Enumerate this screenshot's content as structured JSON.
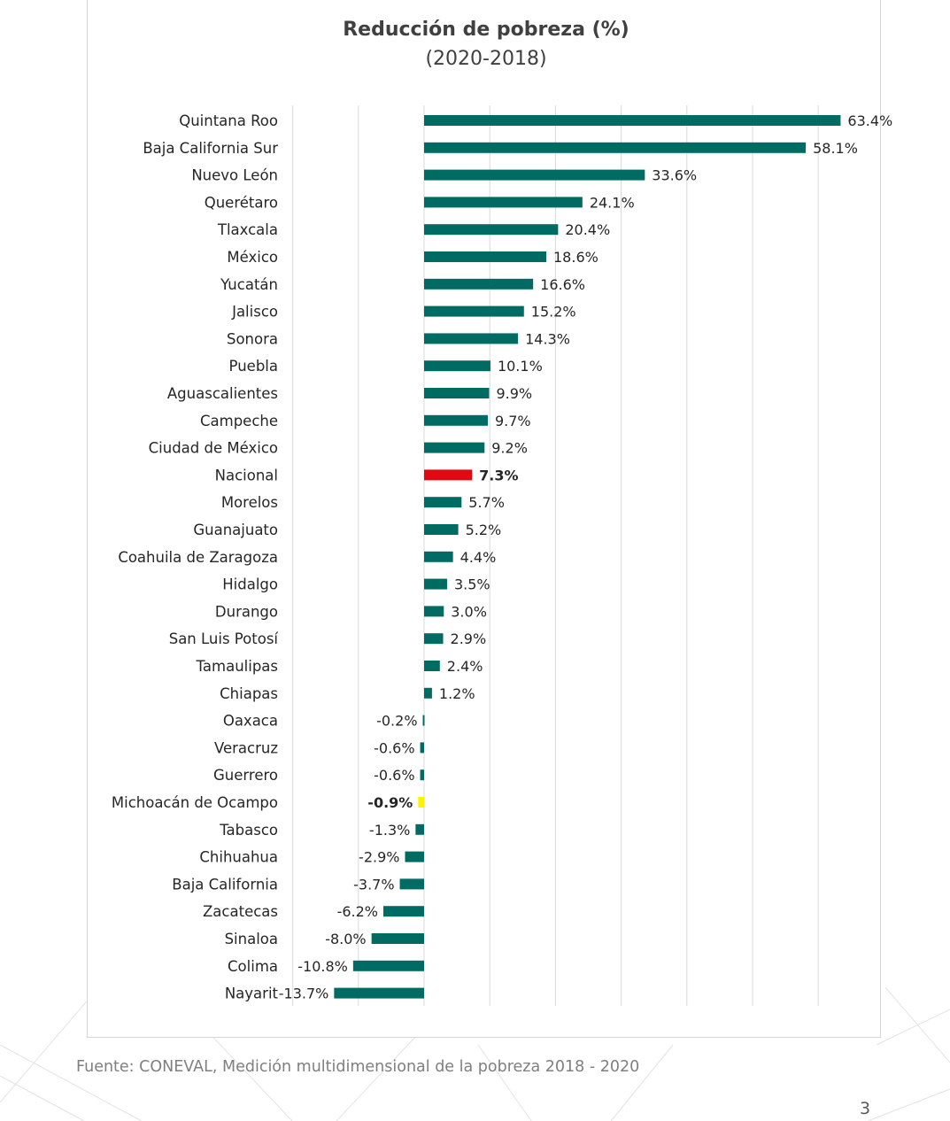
{
  "source_note": "Fuente: CONEVAL, Medición multidimensional de la pobreza 2018 - 2020",
  "page_number": "3",
  "chart_data": {
    "type": "bar",
    "orientation": "horizontal",
    "title": "Reducción de pobreza (%)",
    "subtitle": "(2020-2018)",
    "xlim": [
      -20,
      60
    ],
    "grid": true,
    "legend": "none",
    "colors": {
      "default": "#006B63",
      "nacional": "#E30613",
      "michoacan": "#FFF200",
      "michoacan_label": "#4C8C2B",
      "nacional_label": "#E30613",
      "label": "#262626"
    },
    "categories": [
      "Quintana Roo",
      "Baja California Sur",
      "Nuevo León",
      "Querétaro",
      "Tlaxcala",
      "México",
      "Yucatán",
      "Jalisco",
      "Sonora",
      "Puebla",
      "Aguascalientes",
      "Campeche",
      "Ciudad de México",
      "Nacional",
      "Morelos",
      "Guanajuato",
      "Coahuila de Zaragoza",
      "Hidalgo",
      "Durango",
      "San Luis Potosí",
      "Tamaulipas",
      "Chiapas",
      "Oaxaca",
      "Veracruz",
      "Guerrero",
      "Michoacán de Ocampo",
      "Tabasco",
      "Chihuahua",
      "Baja California",
      "Zacatecas",
      "Sinaloa",
      "Colima",
      "Nayarit"
    ],
    "values": [
      63.4,
      58.1,
      33.6,
      24.1,
      20.4,
      18.6,
      16.6,
      15.2,
      14.3,
      10.1,
      9.9,
      9.7,
      9.2,
      7.3,
      5.7,
      5.2,
      4.4,
      3.5,
      3.0,
      2.9,
      2.4,
      1.2,
      -0.2,
      -0.6,
      -0.6,
      -0.9,
      -1.3,
      -2.9,
      -3.7,
      -6.2,
      -8.0,
      -10.8,
      -13.7
    ],
    "value_labels": [
      "63.4%",
      "58.1%",
      "33.6%",
      "24.1%",
      "20.4%",
      "18.6%",
      "16.6%",
      "15.2%",
      "14.3%",
      "10.1%",
      "9.9%",
      "9.7%",
      "9.2%",
      "7.3%",
      "5.7%",
      "5.2%",
      "4.4%",
      "3.5%",
      "3.0%",
      "2.9%",
      "2.4%",
      "1.2%",
      "-0.2%",
      "-0.6%",
      "-0.6%",
      "-0.9%",
      "-1.3%",
      "-2.9%",
      "-3.7%",
      "-6.2%",
      "-8.0%",
      "-10.8%",
      "-13.7%"
    ],
    "highlights": {
      "Nacional": "nacional",
      "Michoacán de Ocampo": "michoacan"
    }
  }
}
